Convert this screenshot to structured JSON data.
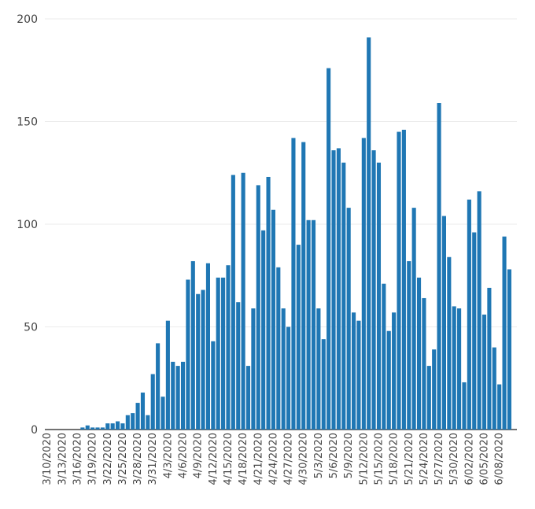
{
  "chart_data": {
    "type": "bar",
    "color": "#1f77b4",
    "x_start": "3/10/2020",
    "x": [
      "3/10/2020",
      "3/11/2020",
      "3/12/2020",
      "3/13/2020",
      "3/14/2020",
      "3/15/2020",
      "3/16/2020",
      "3/17/2020",
      "3/18/2020",
      "3/19/2020",
      "3/20/2020",
      "3/21/2020",
      "3/22/2020",
      "3/23/2020",
      "3/24/2020",
      "3/25/2020",
      "3/26/2020",
      "3/27/2020",
      "3/28/2020",
      "3/29/2020",
      "3/30/2020",
      "3/31/2020",
      "4/1/2020",
      "4/2/2020",
      "4/3/2020",
      "4/4/2020",
      "4/5/2020",
      "4/6/2020",
      "4/7/2020",
      "4/8/2020",
      "4/9/2020",
      "4/10/2020",
      "4/11/2020",
      "4/12/2020",
      "4/13/2020",
      "4/14/2020",
      "4/15/2020",
      "4/16/2020",
      "4/17/2020",
      "4/18/2020",
      "4/19/2020",
      "4/20/2020",
      "4/21/2020",
      "4/22/2020",
      "4/23/2020",
      "4/24/2020",
      "4/25/2020",
      "4/26/2020",
      "4/27/2020",
      "4/28/2020",
      "4/29/2020",
      "4/30/2020",
      "5/1/2020",
      "5/2/2020",
      "5/3/2020",
      "5/4/2020",
      "5/5/2020",
      "5/6/2020",
      "5/7/2020",
      "5/8/2020",
      "5/9/2020",
      "5/10/2020",
      "5/11/2020",
      "5/12/2020",
      "5/13/2020",
      "5/14/2020",
      "5/15/2020",
      "5/16/2020",
      "5/17/2020",
      "5/18/2020",
      "5/19/2020",
      "5/20/2020",
      "5/21/2020",
      "5/22/2020",
      "5/23/2020",
      "5/24/2020",
      "5/25/2020",
      "5/26/2020",
      "5/27/2020",
      "5/28/2020",
      "5/29/2020",
      "5/30/2020",
      "5/31/2020",
      "6/1/2020",
      "6/2/2020",
      "6/3/2020",
      "6/4/2020",
      "6/5/2020",
      "6/6/2020",
      "6/7/2020",
      "6/8/2020",
      "6/9/2020",
      "6/10/2020",
      "6/11/2020"
    ],
    "values": [
      0,
      0,
      0,
      0,
      0,
      0,
      0,
      1,
      2,
      1,
      1,
      1,
      3,
      3,
      4,
      3,
      7,
      8,
      13,
      18,
      7,
      27,
      42,
      16,
      53,
      33,
      31,
      33,
      73,
      82,
      66,
      68,
      81,
      43,
      74,
      74,
      80,
      124,
      62,
      125,
      31,
      59,
      119,
      97,
      123,
      107,
      79,
      59,
      50,
      142,
      90,
      140,
      102,
      102,
      59,
      44,
      176,
      136,
      137,
      130,
      108,
      57,
      53,
      142,
      191,
      136,
      130,
      71,
      48,
      57,
      145,
      146,
      82,
      108,
      74,
      64,
      31,
      39,
      159,
      104,
      84,
      60,
      59,
      23,
      112,
      96,
      116,
      56,
      69,
      40,
      22,
      94,
      78,
      0
    ],
    "x_tick_labels": [
      "3/10/2020",
      "3/13/2020",
      "3/16/2020",
      "3/19/2020",
      "3/22/2020",
      "3/25/2020",
      "3/28/2020",
      "3/31/2020",
      "4/3/2020",
      "4/6/2020",
      "4/9/2020",
      "4/12/2020",
      "4/15/2020",
      "4/18/2020",
      "4/21/2020",
      "4/24/2020",
      "4/27/2020",
      "4/30/2020",
      "5/3/2020",
      "5/6/2020",
      "5/9/2020",
      "5/12/2020",
      "5/15/2020",
      "5/18/2020",
      "5/21/2020",
      "5/24/2020",
      "5/27/2020",
      "5/30/2020",
      "6/02/2020",
      "6/05/2020",
      "6/08/2020"
    ],
    "y_ticks": [
      0,
      50,
      100,
      150,
      200
    ],
    "ylim": [
      0,
      200
    ],
    "grid": true,
    "title": "",
    "xlabel": "",
    "ylabel": ""
  }
}
